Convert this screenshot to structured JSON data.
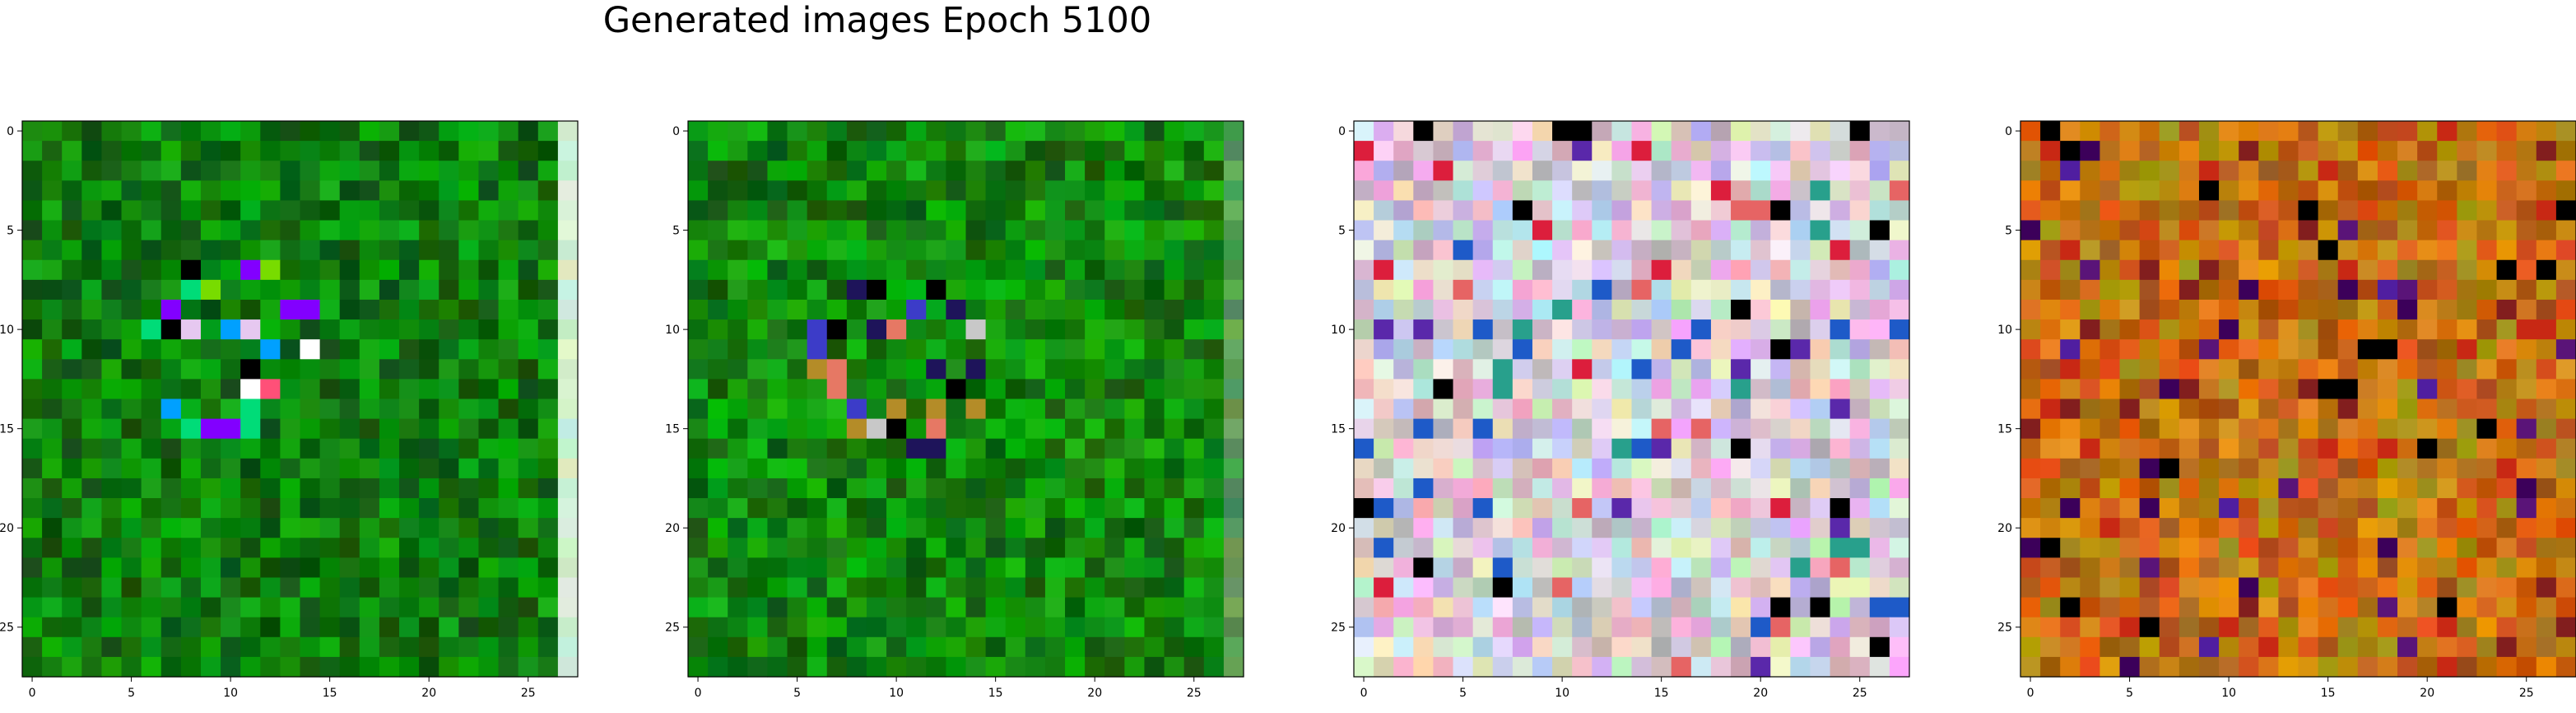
{
  "title": "Generated images Epoch 5100",
  "chart_data": [
    {
      "type": "heatmap",
      "image_index": 1,
      "dominant_color": "#0a7d0a",
      "size": [
        28,
        28
      ],
      "xticks": [
        0,
        5,
        10,
        15,
        20,
        25
      ],
      "yticks": [
        0,
        5,
        10,
        15,
        20,
        25
      ],
      "xlim": [
        -0.5,
        27.5
      ],
      "ylim": [
        27.5,
        -0.5
      ],
      "grid": false
    },
    {
      "type": "heatmap",
      "image_index": 2,
      "dominant_color": "#0b800b",
      "size": [
        28,
        28
      ],
      "xticks": [
        0,
        5,
        10,
        15,
        20,
        25
      ],
      "yticks": [
        0,
        5,
        10,
        15,
        20,
        25
      ],
      "xlim": [
        -0.5,
        27.5
      ],
      "ylim": [
        27.5,
        -0.5
      ],
      "grid": false
    },
    {
      "type": "heatmap",
      "image_index": 3,
      "dominant_color": "#c8b4d2",
      "size": [
        28,
        28
      ],
      "xticks": [
        0,
        5,
        10,
        15,
        20,
        25
      ],
      "yticks": [
        0,
        5,
        10,
        15,
        20,
        25
      ],
      "xlim": [
        -0.5,
        27.5
      ],
      "ylim": [
        27.5,
        -0.5
      ],
      "grid": false
    },
    {
      "type": "heatmap",
      "image_index": 4,
      "dominant_color": "#b4780f",
      "size": [
        28,
        28
      ],
      "xticks": [
        0,
        5,
        10,
        15,
        20,
        25
      ],
      "yticks": [
        0,
        5,
        10,
        15,
        20,
        25
      ],
      "xlim": [
        -0.5,
        27.5
      ],
      "ylim": [
        27.5,
        -0.5
      ],
      "grid": false
    }
  ]
}
